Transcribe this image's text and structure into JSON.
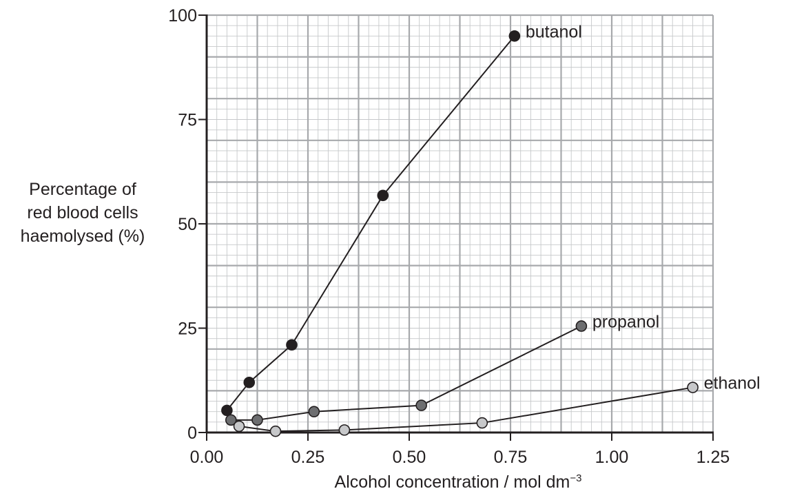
{
  "chart_data": {
    "type": "line",
    "xlabel": "Alcohol concentration / mol dm",
    "xlabel_superscript": "−3",
    "ylabel_lines": [
      "Percentage of",
      "red blood cells",
      "haemolysed (%)"
    ],
    "xlim": [
      0,
      1.25
    ],
    "ylim": [
      0,
      100
    ],
    "x_ticks": [
      0,
      0.25,
      0.5,
      0.75,
      1.0,
      1.25
    ],
    "x_tick_labels": [
      "0.00",
      "0.25",
      "0.50",
      "0.75",
      "1.00",
      "1.25"
    ],
    "y_ticks": [
      0,
      25,
      50,
      75,
      100
    ],
    "y_tick_labels": [
      "0",
      "25",
      "50",
      "75",
      "100"
    ],
    "grid": true,
    "series": [
      {
        "name": "butanol",
        "color": "#231f20",
        "x": [
          0.05,
          0.105,
          0.21,
          0.435,
          0.76
        ],
        "y": [
          5.3,
          12,
          21,
          56.8,
          95
        ]
      },
      {
        "name": "propanol",
        "color": "#6d6e70",
        "x": [
          0.06,
          0.125,
          0.265,
          0.53,
          0.925
        ],
        "y": [
          3,
          3,
          5,
          6.5,
          25.5
        ]
      },
      {
        "name": "ethanol",
        "color": "#c7c8ca",
        "x": [
          0.08,
          0.17,
          0.34,
          0.68,
          1.2
        ],
        "y": [
          1.5,
          0.3,
          0.6,
          2.3,
          10.8
        ]
      }
    ]
  }
}
